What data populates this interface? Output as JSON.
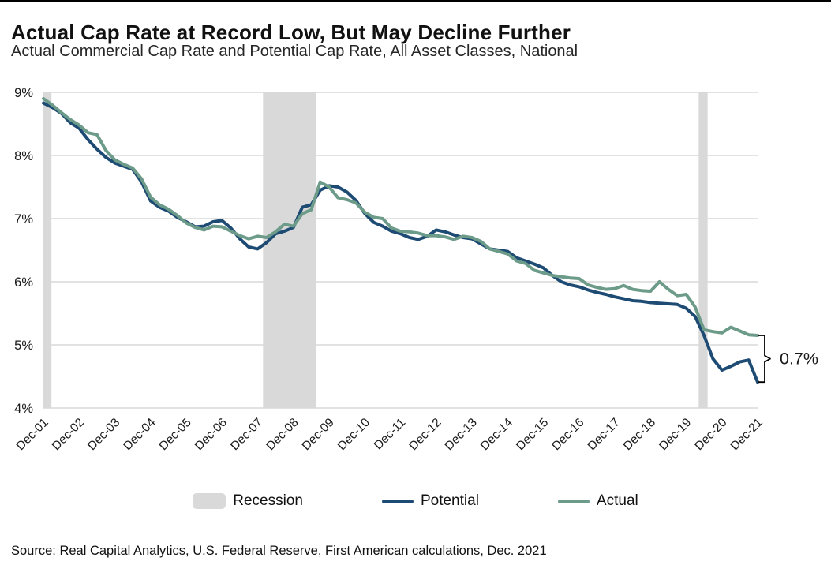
{
  "header": {
    "title": "Actual Cap Rate at Record Low, But May Decline Further",
    "subtitle": "Actual Commercial Cap Rate and Potential Cap Rate, All Asset Classes, National"
  },
  "footer": {
    "source": "Source: Real Capital Analytics, U.S. Federal Reserve, First American calculations, Dec. 2021"
  },
  "colors": {
    "potential_line": "#1E4B74",
    "actual_line": "#6D9B89",
    "recession_band": "#D9D9D9",
    "gridline": "#D9D9D9",
    "text": "#1a1a1a",
    "annotation": "#000000"
  },
  "legend": {
    "items": [
      {
        "label": "Recession",
        "type": "band",
        "color": "#D9D9D9"
      },
      {
        "label": "Potential",
        "type": "line",
        "color": "#1E4B74"
      },
      {
        "label": "Actual",
        "type": "line",
        "color": "#6D9B89"
      }
    ]
  },
  "chart_data": {
    "type": "line",
    "title": "Actual Cap Rate at Record Low, But May Decline Further",
    "subtitle": "Actual Commercial Cap Rate and Potential Cap Rate, All Asset Classes, National",
    "xlabel": "",
    "ylabel": "",
    "ylim": [
      4,
      9
    ],
    "grid": "horizontal",
    "legend_position": "bottom",
    "frequency": "quarterly",
    "x_tick_labels": [
      "Dec-01",
      "Dec-02",
      "Dec-03",
      "Dec-04",
      "Dec-05",
      "Dec-06",
      "Dec-07",
      "Dec-08",
      "Dec-09",
      "Dec-10",
      "Dec-11",
      "Dec-12",
      "Dec-13",
      "Dec-14",
      "Dec-15",
      "Dec-16",
      "Dec-17",
      "Dec-18",
      "Dec-19",
      "Dec-20",
      "Dec-21"
    ],
    "x_points_per_tick": 4,
    "y_ticks": [
      {
        "label": "9%",
        "value": 9
      },
      {
        "label": "8%",
        "value": 8
      },
      {
        "label": "7%",
        "value": 7
      },
      {
        "label": "6%",
        "value": 6
      },
      {
        "label": "5%",
        "value": 5
      },
      {
        "label": "4%",
        "value": 4
      }
    ],
    "recession_bands_index": [
      [
        0,
        0.9
      ],
      [
        24.6,
        30.5
      ],
      [
        73.4,
        74.4
      ]
    ],
    "series": [
      {
        "name": "Potential",
        "color": "#1E4B74",
        "values": [
          8.83,
          8.76,
          8.67,
          8.52,
          8.43,
          8.25,
          8.1,
          7.97,
          7.88,
          7.83,
          7.78,
          7.58,
          7.28,
          7.18,
          7.12,
          7.02,
          6.95,
          6.87,
          6.88,
          6.95,
          6.97,
          6.85,
          6.68,
          6.55,
          6.52,
          6.62,
          6.76,
          6.8,
          6.86,
          7.18,
          7.22,
          7.45,
          7.52,
          7.5,
          7.42,
          7.29,
          7.08,
          6.94,
          6.88,
          6.8,
          6.76,
          6.7,
          6.67,
          6.72,
          6.82,
          6.79,
          6.74,
          6.7,
          6.68,
          6.6,
          6.52,
          6.5,
          6.48,
          6.38,
          6.33,
          6.28,
          6.22,
          6.1,
          6.0,
          5.95,
          5.92,
          5.87,
          5.83,
          5.8,
          5.76,
          5.73,
          5.7,
          5.69,
          5.67,
          5.66,
          5.65,
          5.64,
          5.58,
          5.45,
          5.15,
          4.78,
          4.6,
          4.66,
          4.73,
          4.76,
          4.41
        ]
      },
      {
        "name": "Actual",
        "color": "#6D9B89",
        "values": [
          8.9,
          8.8,
          8.68,
          8.57,
          8.48,
          8.36,
          8.33,
          8.08,
          7.93,
          7.86,
          7.8,
          7.63,
          7.34,
          7.22,
          7.15,
          7.05,
          6.93,
          6.86,
          6.82,
          6.88,
          6.87,
          6.8,
          6.73,
          6.68,
          6.72,
          6.7,
          6.79,
          6.91,
          6.88,
          7.08,
          7.14,
          7.58,
          7.5,
          7.33,
          7.3,
          7.25,
          7.1,
          7.02,
          7.0,
          6.85,
          6.8,
          6.79,
          6.77,
          6.73,
          6.73,
          6.71,
          6.67,
          6.72,
          6.7,
          6.64,
          6.52,
          6.48,
          6.44,
          6.33,
          6.29,
          6.18,
          6.14,
          6.1,
          6.08,
          6.06,
          6.05,
          5.95,
          5.91,
          5.88,
          5.89,
          5.94,
          5.88,
          5.86,
          5.85,
          6.0,
          5.88,
          5.78,
          5.8,
          5.6,
          5.24,
          5.21,
          5.19,
          5.28,
          5.22,
          5.16,
          5.15
        ]
      }
    ],
    "annotation": {
      "label": "0.7%",
      "meaning": "gap between Actual and Potential at Dec-21"
    }
  }
}
